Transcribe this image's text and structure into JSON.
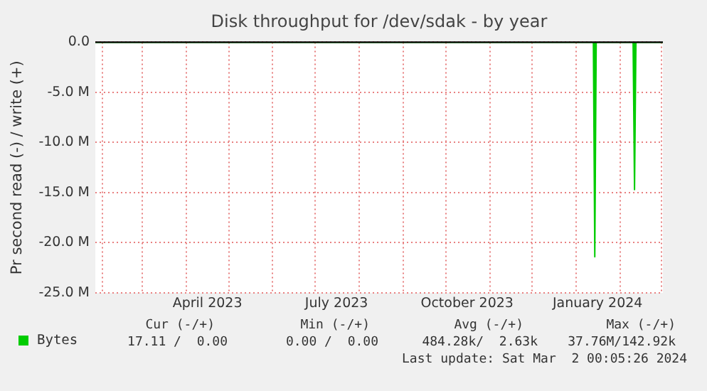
{
  "chart_data": {
    "type": "area",
    "title": "Disk throughput for /dev/sdak - by year",
    "ylabel": "Pr second read (-) / write (+)",
    "x": [
      "2023-01-27",
      "2024-01-13",
      "2024-01-14",
      "2024-01-15",
      "2024-02-10",
      "2024-02-11",
      "2024-02-12",
      "2024-03-02"
    ],
    "series": [
      {
        "name": "Bytes",
        "color": "#00cc00",
        "values": [
          0,
          0,
          -21.4,
          0,
          0,
          -14.7,
          0,
          0
        ]
      }
    ],
    "xlim": [
      "2023-01-27",
      "2024-03-02"
    ],
    "xticks": [
      {
        "value": "2023-02-01",
        "label": null
      },
      {
        "value": "2023-03-01",
        "label": null
      },
      {
        "value": "2023-04-01",
        "label": null
      },
      {
        "value": "2023-04-16",
        "label": "April 2023"
      },
      {
        "value": "2023-05-01",
        "label": null
      },
      {
        "value": "2023-06-01",
        "label": null
      },
      {
        "value": "2023-07-01",
        "label": null
      },
      {
        "value": "2023-07-16",
        "label": "July 2023"
      },
      {
        "value": "2023-08-01",
        "label": null
      },
      {
        "value": "2023-09-01",
        "label": null
      },
      {
        "value": "2023-10-01",
        "label": null
      },
      {
        "value": "2023-10-16",
        "label": "October 2023"
      },
      {
        "value": "2023-11-01",
        "label": null
      },
      {
        "value": "2023-12-01",
        "label": null
      },
      {
        "value": "2024-01-01",
        "label": null
      },
      {
        "value": "2024-01-16",
        "label": "January 2024"
      },
      {
        "value": "2024-02-01",
        "label": null
      },
      {
        "value": "2024-03-01",
        "label": null
      }
    ],
    "ylim": [
      -25,
      0
    ],
    "yticks": [
      {
        "value": -25,
        "label": "-25.0 M"
      },
      {
        "value": -20,
        "label": "-20.0 M"
      },
      {
        "value": -15,
        "label": "-15.0 M"
      },
      {
        "value": -10,
        "label": "-10.0 M"
      },
      {
        "value": -5,
        "label": "-5.0 M"
      },
      {
        "value": 0,
        "label": "0.0"
      }
    ],
    "ref_lines": [
      {
        "axis": "y",
        "value": 0,
        "color": "#000000"
      }
    ],
    "grid": true,
    "legend": "bottom left",
    "annotations": [
      "Cur (-/+)",
      "Min (-/+)",
      "Avg (-/+)",
      "Max (-/+)",
      "17.11 /  0.00",
      "0.00 /  0.00",
      "484.28k/  2.63k",
      "37.76M/142.92k",
      "Last update: Sat Mar  2 00:05:26 2024"
    ]
  }
}
